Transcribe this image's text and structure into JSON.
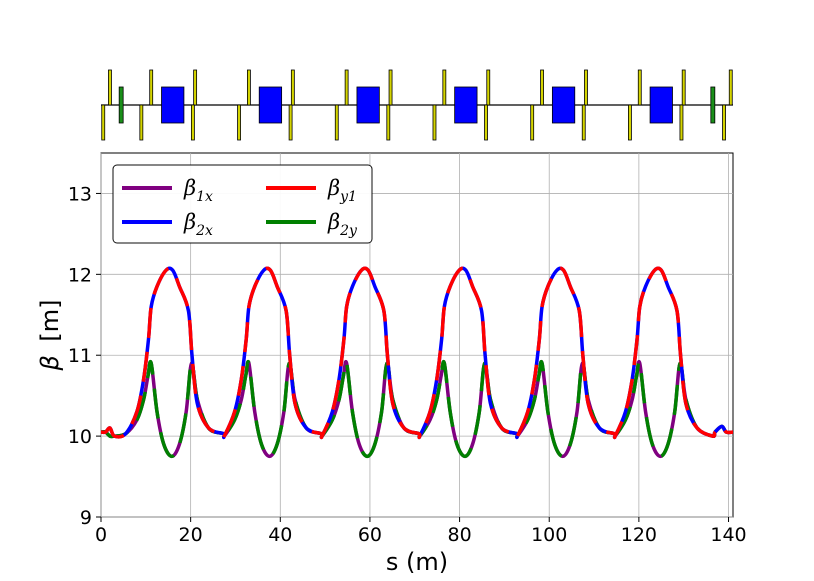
{
  "chart_data": {
    "type": "line",
    "title": "",
    "xlabel": "s (m)",
    "ylabel_symbol": "β",
    "ylabel_unit": "[m]",
    "xlim": [
      0,
      141
    ],
    "ylim": [
      9,
      13.5
    ],
    "xticks": [
      "0",
      "20",
      "40",
      "60",
      "80",
      "100",
      "120",
      "140"
    ],
    "yticks": [
      "9",
      "10",
      "11",
      "12",
      "13"
    ],
    "grid": true,
    "legend_placement": "top-left",
    "legend": [
      {
        "symbol": "β",
        "sub": "1x",
        "color": "#800080"
      },
      {
        "symbol": "β",
        "sub": "2x",
        "color": "#0000ff"
      },
      {
        "symbol": "β",
        "sub": "y1",
        "color": "#ff0000"
      },
      {
        "symbol": "β",
        "sub": "2y",
        "color": "#008000"
      }
    ],
    "cells": 6,
    "cell_start_s": 0.5,
    "cell_length_s": 21.8,
    "series": [
      {
        "name": "β1x",
        "color": "#800080",
        "segment_pattern": [
          0.5,
          0.5
        ],
        "x": [
          0,
          2,
          3,
          5.5,
          8,
          9.5,
          10.5,
          11.2,
          12.5,
          14,
          15.8,
          17.5,
          19,
          20.2,
          21.5,
          24,
          27.5,
          32.2,
          36.5,
          40
        ],
        "y": [
          10.05,
          10.0,
          10.0,
          10.03,
          10.2,
          10.45,
          10.75,
          10.9,
          10.3,
          9.9,
          9.75,
          9.9,
          10.3,
          10.9,
          10.45,
          10.1,
          10.0,
          10.05,
          10.55,
          10.9
        ]
      },
      {
        "name": "β2x",
        "color": "#0000ff",
        "segment_pattern": [
          0.5,
          0.5
        ],
        "x": [
          0,
          2,
          3,
          5.5,
          8,
          9.5,
          10.6,
          11.2,
          12.5,
          14.5,
          16,
          17.5,
          19.5,
          20.3,
          21.5,
          24,
          27.5,
          32.2
        ],
        "y": [
          10.05,
          10.1,
          10.0,
          10.03,
          10.3,
          10.7,
          11.2,
          11.6,
          11.85,
          12.05,
          12.05,
          11.85,
          11.55,
          11.0,
          10.4,
          10.1,
          10.0,
          10.9
        ]
      },
      {
        "name": "βy1",
        "color": "#ff0000",
        "segment_pattern": [
          0.5,
          0.5
        ],
        "x": [
          0,
          2,
          3,
          5.5,
          8,
          9.5,
          10.6,
          11.2,
          12.5,
          14.5,
          16,
          17.5,
          19.5,
          20.3,
          21.5,
          24,
          27.5,
          32.2
        ],
        "y": [
          10.05,
          10.1,
          10.0,
          10.03,
          10.3,
          10.7,
          11.2,
          11.6,
          11.85,
          12.05,
          12.05,
          11.85,
          11.55,
          11.0,
          10.4,
          10.1,
          10.0,
          10.9
        ]
      },
      {
        "name": "β2y",
        "color": "#008000",
        "segment_pattern": [
          0.5,
          0.5
        ],
        "x": [
          0,
          2,
          3,
          5.5,
          8,
          9.5,
          10.5,
          11.2,
          12.5,
          14,
          15.8,
          17.5,
          19,
          20.2,
          21.5,
          24,
          27.5,
          32.2
        ],
        "y": [
          10.05,
          10.0,
          10.0,
          10.03,
          10.2,
          10.45,
          10.75,
          10.9,
          10.3,
          9.9,
          9.75,
          9.9,
          10.3,
          10.9,
          10.45,
          10.1,
          10.0,
          10.9
        ]
      }
    ],
    "lattice": {
      "dipoles_s": [
        16.0,
        37.8,
        59.6,
        81.4,
        103.2,
        125.0
      ],
      "dipole_length_s": 5.0,
      "quads_focusing_s": [
        2.0,
        11.2,
        21.0,
        33.0,
        42.8,
        54.8,
        64.6,
        76.6,
        86.4,
        98.4,
        108.2,
        120.2,
        130.0,
        140.5
      ],
      "quads_defocusing_s": [
        0.5,
        9.0,
        20.5,
        30.8,
        42.3,
        52.6,
        64.1,
        74.4,
        85.9,
        96.2,
        107.7,
        118.0,
        129.5,
        139.0
      ],
      "skew_quads_s": [
        4.5,
        136.5
      ],
      "colors": {
        "dipole": "#0000ff",
        "quad": "#d4d400",
        "skew": "#1a8f1a",
        "line": "#000000"
      }
    }
  }
}
